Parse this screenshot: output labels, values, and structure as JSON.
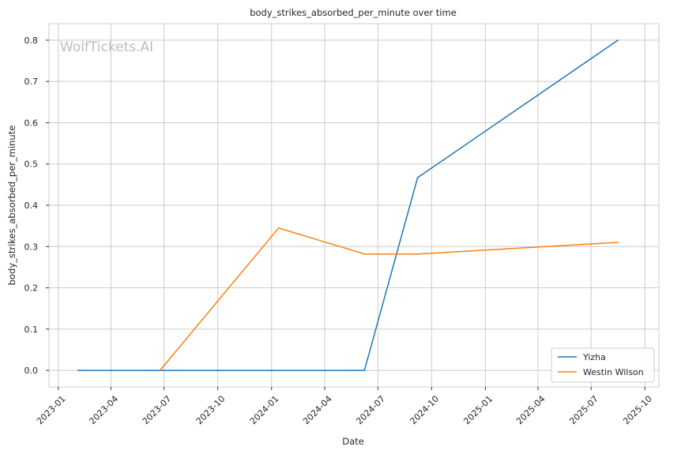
{
  "chart_data": {
    "type": "line",
    "title": "body_strikes_absorbed_per_minute over time",
    "xlabel": "Date",
    "ylabel": "body_strikes_absorbed_per_minute",
    "watermark": "WolfTickets.AI",
    "x_ticks": [
      "2023-01",
      "2023-04",
      "2023-07",
      "2023-10",
      "2024-01",
      "2024-04",
      "2024-07",
      "2024-10",
      "2025-01",
      "2025-04",
      "2025-07",
      "2025-10"
    ],
    "y_ticks": [
      "0.0",
      "0.1",
      "0.2",
      "0.3",
      "0.4",
      "0.5",
      "0.6",
      "0.7",
      "0.8"
    ],
    "xlim": [
      "2022-12-16",
      "2025-10-25"
    ],
    "ylim": [
      -0.04,
      0.84
    ],
    "grid": true,
    "legend_position": "bottom-right",
    "series": [
      {
        "name": "Yizha",
        "color": "#1f77b4",
        "points": [
          {
            "x": "2023-02-04",
            "y": 0.0
          },
          {
            "x": "2024-06-08",
            "y": 0.0
          },
          {
            "x": "2024-09-07",
            "y": 0.467
          },
          {
            "x": "2025-08-16",
            "y": 0.8
          }
        ]
      },
      {
        "name": "Westin Wilson",
        "color": "#ff7f0e",
        "points": [
          {
            "x": "2023-06-24",
            "y": 0.0
          },
          {
            "x": "2024-01-13",
            "y": 0.345
          },
          {
            "x": "2024-06-08",
            "y": 0.282
          },
          {
            "x": "2024-09-07",
            "y": 0.282
          },
          {
            "x": "2025-08-16",
            "y": 0.31
          }
        ]
      }
    ]
  }
}
